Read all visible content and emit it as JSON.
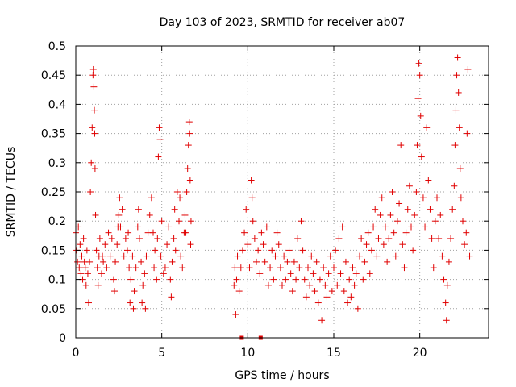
{
  "chart_data": {
    "type": "scatter",
    "title": "Day 103 of 2023, SRMTID for receiver ab07",
    "xlabel": "GPS time / hours",
    "ylabel": "SRMTID / TECUs",
    "xlim": [
      0,
      24
    ],
    "ylim": [
      0,
      0.5
    ],
    "x_ticks": [
      0,
      5,
      10,
      15,
      20
    ],
    "x_tick_labels": [
      "0",
      "5",
      "10",
      "15",
      "20"
    ],
    "y_ticks": [
      0,
      0.05,
      0.1,
      0.15,
      0.2,
      0.25,
      0.3,
      0.35,
      0.4,
      0.45,
      0.5
    ],
    "y_tick_labels": [
      "0",
      "0.05",
      "0.1",
      "0.15",
      "0.2",
      "0.25",
      "0.3",
      "0.35",
      "0.4",
      "0.45",
      "0.5"
    ],
    "grid": true,
    "marker": "plus",
    "color": "#e00000",
    "series": [
      {
        "name": "SRMTID",
        "points": [
          [
            0.0,
            0.18
          ],
          [
            0.05,
            0.15
          ],
          [
            0.1,
            0.13
          ],
          [
            0.15,
            0.19
          ],
          [
            0.2,
            0.12
          ],
          [
            0.25,
            0.16
          ],
          [
            0.3,
            0.11
          ],
          [
            0.35,
            0.14
          ],
          [
            0.4,
            0.1
          ],
          [
            0.45,
            0.17
          ],
          [
            0.5,
            0.13
          ],
          [
            0.55,
            0.12
          ],
          [
            0.6,
            0.09
          ],
          [
            0.65,
            0.15
          ],
          [
            0.7,
            0.11
          ],
          [
            0.75,
            0.06
          ],
          [
            0.8,
            0.13
          ],
          [
            0.85,
            0.25
          ],
          [
            0.9,
            0.3
          ],
          [
            0.95,
            0.36
          ],
          [
            1.0,
            0.45
          ],
          [
            1.02,
            0.46
          ],
          [
            1.05,
            0.43
          ],
          [
            1.08,
            0.39
          ],
          [
            1.1,
            0.35
          ],
          [
            1.12,
            0.29
          ],
          [
            1.15,
            0.21
          ],
          [
            1.2,
            0.15
          ],
          [
            1.25,
            0.12
          ],
          [
            1.3,
            0.09
          ],
          [
            1.35,
            0.14
          ],
          [
            1.4,
            0.17
          ],
          [
            1.5,
            0.11
          ],
          [
            1.55,
            0.14
          ],
          [
            1.6,
            0.13
          ],
          [
            1.7,
            0.16
          ],
          [
            1.8,
            0.12
          ],
          [
            1.9,
            0.18
          ],
          [
            2.0,
            0.14
          ],
          [
            2.1,
            0.17
          ],
          [
            2.2,
            0.1
          ],
          [
            2.25,
            0.08
          ],
          [
            2.3,
            0.13
          ],
          [
            2.4,
            0.16
          ],
          [
            2.45,
            0.19
          ],
          [
            2.5,
            0.21
          ],
          [
            2.55,
            0.24
          ],
          [
            2.6,
            0.19
          ],
          [
            2.7,
            0.22
          ],
          [
            2.8,
            0.14
          ],
          [
            2.9,
            0.17
          ],
          [
            3.0,
            0.15
          ],
          [
            3.05,
            0.18
          ],
          [
            3.1,
            0.12
          ],
          [
            3.15,
            0.06
          ],
          [
            3.2,
            0.1
          ],
          [
            3.3,
            0.14
          ],
          [
            3.35,
            0.05
          ],
          [
            3.4,
            0.08
          ],
          [
            3.5,
            0.12
          ],
          [
            3.6,
            0.19
          ],
          [
            3.65,
            0.22
          ],
          [
            3.7,
            0.17
          ],
          [
            3.8,
            0.13
          ],
          [
            3.85,
            0.06
          ],
          [
            3.9,
            0.09
          ],
          [
            4.0,
            0.11
          ],
          [
            4.05,
            0.05
          ],
          [
            4.1,
            0.14
          ],
          [
            4.2,
            0.18
          ],
          [
            4.3,
            0.21
          ],
          [
            4.4,
            0.24
          ],
          [
            4.5,
            0.18
          ],
          [
            4.55,
            0.12
          ],
          [
            4.6,
            0.15
          ],
          [
            4.7,
            0.1
          ],
          [
            4.75,
            0.17
          ],
          [
            4.8,
            0.31
          ],
          [
            4.85,
            0.36
          ],
          [
            4.9,
            0.34
          ],
          [
            4.95,
            0.14
          ],
          [
            5.0,
            0.2
          ],
          [
            5.1,
            0.11
          ],
          [
            5.2,
            0.12
          ],
          [
            5.3,
            0.16
          ],
          [
            5.4,
            0.19
          ],
          [
            5.5,
            0.1
          ],
          [
            5.55,
            0.07
          ],
          [
            5.6,
            0.13
          ],
          [
            5.7,
            0.17
          ],
          [
            5.75,
            0.22
          ],
          [
            5.8,
            0.15
          ],
          [
            5.9,
            0.25
          ],
          [
            6.0,
            0.2
          ],
          [
            6.05,
            0.24
          ],
          [
            6.1,
            0.14
          ],
          [
            6.2,
            0.12
          ],
          [
            6.3,
            0.18
          ],
          [
            6.35,
            0.21
          ],
          [
            6.4,
            0.18
          ],
          [
            6.45,
            0.25
          ],
          [
            6.5,
            0.29
          ],
          [
            6.55,
            0.33
          ],
          [
            6.6,
            0.37
          ],
          [
            6.62,
            0.35
          ],
          [
            6.65,
            0.27
          ],
          [
            6.68,
            0.16
          ],
          [
            6.7,
            0.2
          ],
          [
            9.2,
            0.09
          ],
          [
            9.25,
            0.12
          ],
          [
            9.3,
            0.04
          ],
          [
            9.35,
            0.1
          ],
          [
            9.4,
            0.14
          ],
          [
            9.5,
            0.08
          ],
          [
            9.6,
            0.12
          ],
          [
            9.7,
            0.15
          ],
          [
            9.8,
            0.18
          ],
          [
            9.9,
            0.22
          ],
          [
            10.0,
            0.16
          ],
          [
            10.1,
            0.12
          ],
          [
            10.2,
            0.27
          ],
          [
            10.25,
            0.24
          ],
          [
            10.3,
            0.2
          ],
          [
            10.4,
            0.17
          ],
          [
            10.5,
            0.13
          ],
          [
            10.6,
            0.15
          ],
          [
            10.7,
            0.11
          ],
          [
            10.8,
            0.18
          ],
          [
            10.9,
            0.16
          ],
          [
            11.0,
            0.13
          ],
          [
            11.1,
            0.19
          ],
          [
            11.2,
            0.09
          ],
          [
            11.3,
            0.12
          ],
          [
            11.4,
            0.15
          ],
          [
            11.5,
            0.1
          ],
          [
            11.6,
            0.14
          ],
          [
            11.7,
            0.18
          ],
          [
            11.8,
            0.16
          ],
          [
            11.9,
            0.12
          ],
          [
            12.0,
            0.09
          ],
          [
            12.1,
            0.14
          ],
          [
            12.2,
            0.1
          ],
          [
            12.3,
            0.13
          ],
          [
            12.4,
            0.15
          ],
          [
            12.5,
            0.11
          ],
          [
            12.6,
            0.08
          ],
          [
            12.7,
            0.13
          ],
          [
            12.8,
            0.1
          ],
          [
            12.9,
            0.17
          ],
          [
            13.0,
            0.12
          ],
          [
            13.1,
            0.2
          ],
          [
            13.2,
            0.15
          ],
          [
            13.3,
            0.1
          ],
          [
            13.4,
            0.07
          ],
          [
            13.5,
            0.12
          ],
          [
            13.6,
            0.09
          ],
          [
            13.7,
            0.14
          ],
          [
            13.8,
            0.11
          ],
          [
            13.9,
            0.08
          ],
          [
            14.0,
            0.13
          ],
          [
            14.1,
            0.06
          ],
          [
            14.2,
            0.1
          ],
          [
            14.3,
            0.03
          ],
          [
            14.4,
            0.12
          ],
          [
            14.5,
            0.09
          ],
          [
            14.6,
            0.07
          ],
          [
            14.7,
            0.11
          ],
          [
            14.8,
            0.14
          ],
          [
            14.9,
            0.08
          ],
          [
            15.0,
            0.12
          ],
          [
            15.1,
            0.15
          ],
          [
            15.2,
            0.09
          ],
          [
            15.3,
            0.17
          ],
          [
            15.4,
            0.11
          ],
          [
            15.5,
            0.19
          ],
          [
            15.6,
            0.08
          ],
          [
            15.7,
            0.13
          ],
          [
            15.8,
            0.06
          ],
          [
            15.9,
            0.1
          ],
          [
            16.0,
            0.07
          ],
          [
            16.1,
            0.12
          ],
          [
            16.2,
            0.09
          ],
          [
            16.3,
            0.11
          ],
          [
            16.4,
            0.05
          ],
          [
            16.5,
            0.14
          ],
          [
            16.6,
            0.17
          ],
          [
            16.7,
            0.1
          ],
          [
            16.8,
            0.13
          ],
          [
            16.9,
            0.16
          ],
          [
            17.0,
            0.18
          ],
          [
            17.1,
            0.11
          ],
          [
            17.2,
            0.15
          ],
          [
            17.3,
            0.19
          ],
          [
            17.4,
            0.22
          ],
          [
            17.5,
            0.14
          ],
          [
            17.6,
            0.17
          ],
          [
            17.7,
            0.21
          ],
          [
            17.8,
            0.24
          ],
          [
            17.9,
            0.16
          ],
          [
            18.0,
            0.19
          ],
          [
            18.1,
            0.13
          ],
          [
            18.2,
            0.17
          ],
          [
            18.3,
            0.21
          ],
          [
            18.4,
            0.25
          ],
          [
            18.5,
            0.18
          ],
          [
            18.6,
            0.14
          ],
          [
            18.7,
            0.2
          ],
          [
            18.8,
            0.23
          ],
          [
            18.9,
            0.33
          ],
          [
            19.0,
            0.16
          ],
          [
            19.1,
            0.12
          ],
          [
            19.2,
            0.18
          ],
          [
            19.3,
            0.22
          ],
          [
            19.4,
            0.26
          ],
          [
            19.5,
            0.19
          ],
          [
            19.6,
            0.15
          ],
          [
            19.7,
            0.21
          ],
          [
            19.8,
            0.25
          ],
          [
            19.85,
            0.33
          ],
          [
            19.9,
            0.41
          ],
          [
            19.95,
            0.47
          ],
          [
            20.0,
            0.45
          ],
          [
            20.05,
            0.38
          ],
          [
            20.1,
            0.31
          ],
          [
            20.2,
            0.24
          ],
          [
            20.3,
            0.19
          ],
          [
            20.4,
            0.36
          ],
          [
            20.5,
            0.27
          ],
          [
            20.6,
            0.22
          ],
          [
            20.7,
            0.17
          ],
          [
            20.8,
            0.12
          ],
          [
            20.9,
            0.2
          ],
          [
            21.0,
            0.24
          ],
          [
            21.1,
            0.17
          ],
          [
            21.2,
            0.21
          ],
          [
            21.3,
            0.14
          ],
          [
            21.4,
            0.1
          ],
          [
            21.5,
            0.06
          ],
          [
            21.55,
            0.03
          ],
          [
            21.6,
            0.09
          ],
          [
            21.7,
            0.13
          ],
          [
            21.8,
            0.17
          ],
          [
            21.9,
            0.22
          ],
          [
            22.0,
            0.26
          ],
          [
            22.05,
            0.33
          ],
          [
            22.1,
            0.39
          ],
          [
            22.15,
            0.45
          ],
          [
            22.2,
            0.48
          ],
          [
            22.25,
            0.42
          ],
          [
            22.3,
            0.36
          ],
          [
            22.35,
            0.29
          ],
          [
            22.4,
            0.24
          ],
          [
            22.5,
            0.2
          ],
          [
            22.6,
            0.16
          ],
          [
            22.7,
            0.18
          ],
          [
            22.75,
            0.35
          ],
          [
            22.8,
            0.46
          ],
          [
            22.9,
            0.14
          ]
        ]
      }
    ],
    "off_axis_marks": {
      "y_value": 0,
      "x": [
        9.65,
        10.75
      ]
    }
  }
}
